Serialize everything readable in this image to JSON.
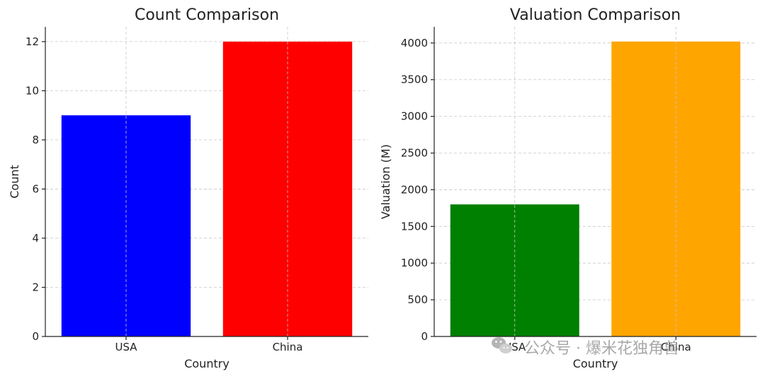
{
  "chart_data": [
    {
      "type": "bar",
      "title": "Count Comparison",
      "xlabel": "Country",
      "ylabel": "Count",
      "categories": [
        "USA",
        "China"
      ],
      "values": [
        9,
        12
      ],
      "colors": [
        "#0000ff",
        "#ff0000"
      ],
      "ylim": [
        0,
        12.6
      ],
      "yticks": [
        0,
        2,
        4,
        6,
        8,
        10,
        12
      ],
      "grid": true,
      "legend": "none"
    },
    {
      "type": "bar",
      "title": "Valuation Comparison",
      "xlabel": "Country",
      "ylabel": "Valuation (M)",
      "categories": [
        "USA",
        "China"
      ],
      "values": [
        1800,
        4020
      ],
      "colors": [
        "#008000",
        "#ffa500"
      ],
      "ylim": [
        0,
        4220
      ],
      "yticks": [
        0,
        500,
        1000,
        1500,
        2000,
        2500,
        3000,
        3500,
        4000
      ],
      "grid": true,
      "legend": "none"
    }
  ],
  "watermark": {
    "icon": "wechat-icon",
    "text": "公众号 · 爆米花独角兽"
  }
}
